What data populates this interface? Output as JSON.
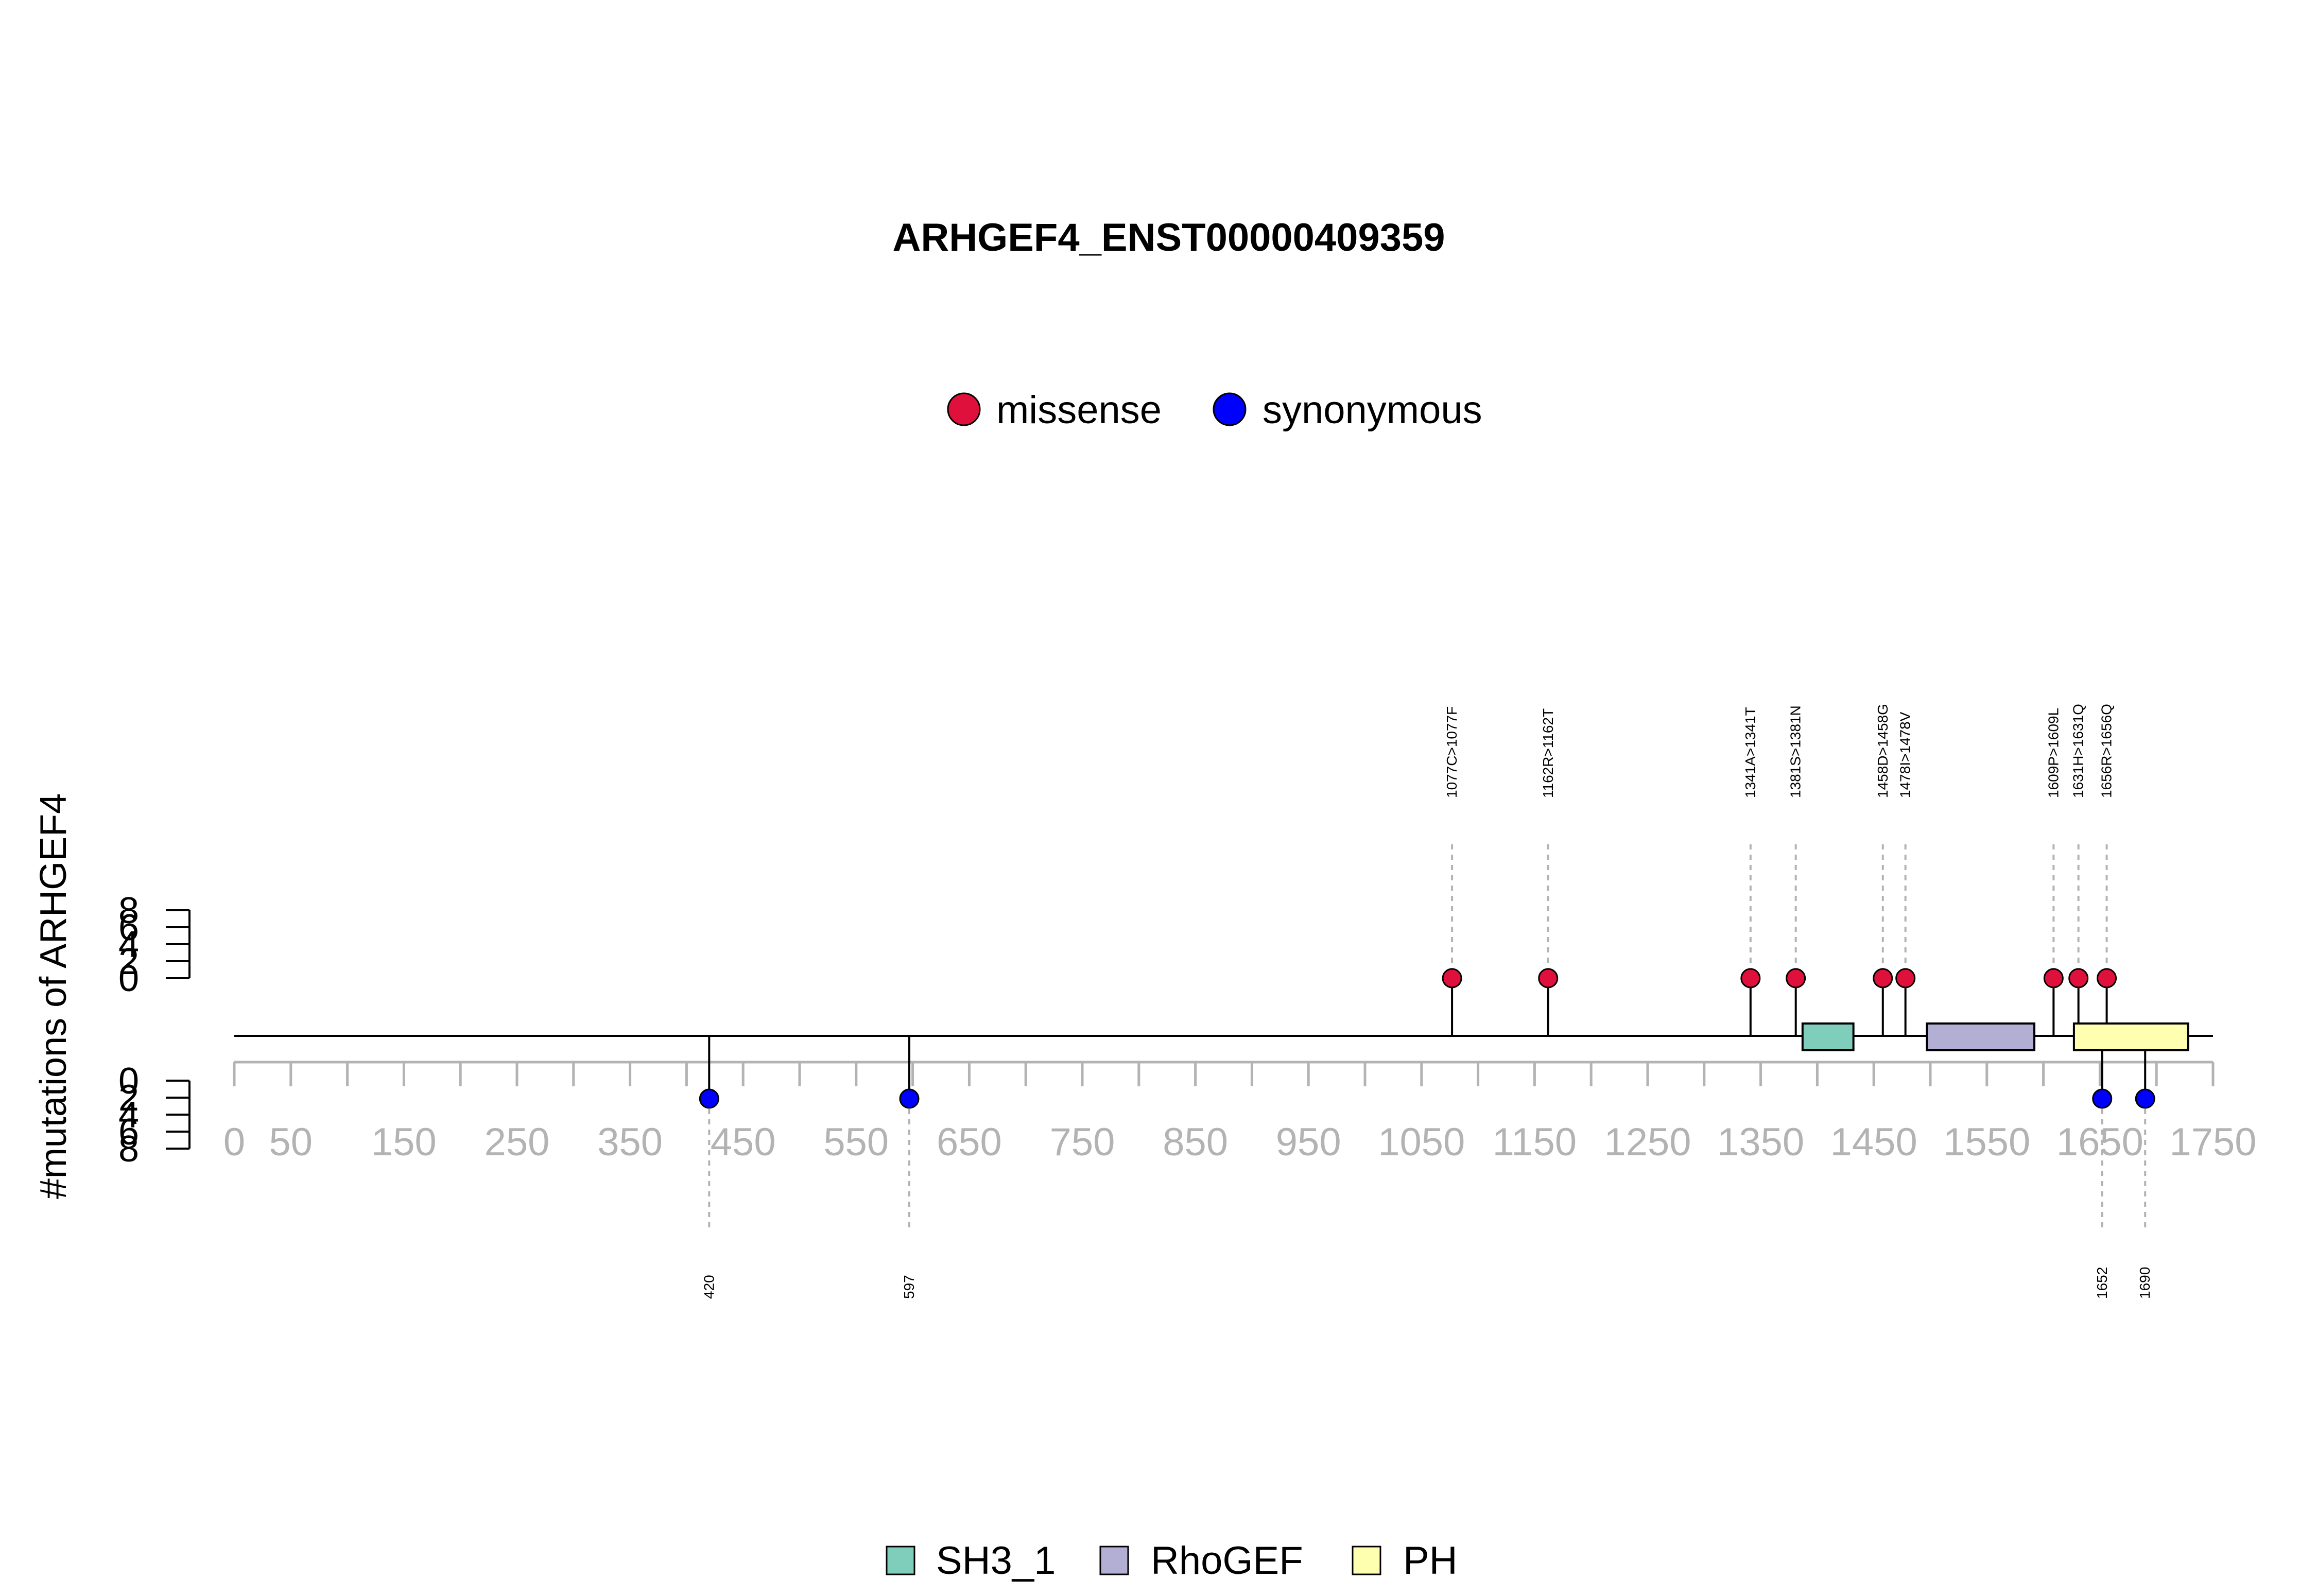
{
  "chart_data": {
    "type": "lollipop",
    "title": "ARHGEF4_ENST00000409359",
    "ylabel": "#mutations of ARHGEF4",
    "xlim": [
      0,
      1750
    ],
    "x_ticks": [
      0,
      50,
      100,
      150,
      200,
      250,
      300,
      350,
      400,
      450,
      500,
      550,
      600,
      650,
      700,
      750,
      800,
      850,
      900,
      950,
      1000,
      1050,
      1100,
      1150,
      1200,
      1250,
      1300,
      1350,
      1400,
      1450,
      1500,
      1550,
      1600,
      1650,
      1700,
      1750
    ],
    "x_tick_labels": [
      "0",
      "50",
      "150",
      "250",
      "350",
      "450",
      "550",
      "650",
      "750",
      "850",
      "950",
      "1050",
      "1150",
      "1250",
      "1350",
      "1450",
      "1550",
      "1650",
      "1750"
    ],
    "y_ticks": [
      "0",
      "2",
      "4",
      "6",
      "8"
    ],
    "ylim": [
      0,
      8
    ],
    "mutation_legend": [
      {
        "name": "missense",
        "color": "#E0103C"
      },
      {
        "name": "synonymous",
        "color": "#0000FF"
      }
    ],
    "domain_legend": [
      {
        "name": "SH3_1",
        "color": "#7FCDBB"
      },
      {
        "name": "RhoGEF",
        "color": "#B3AED4"
      },
      {
        "name": "PH",
        "color": "#FFFFB0"
      }
    ],
    "domains": [
      {
        "name": "SH3_1",
        "start": 1387,
        "end": 1432
      },
      {
        "name": "RhoGEF",
        "start": 1497,
        "end": 1592
      },
      {
        "name": "PH",
        "start": 1627,
        "end": 1728
      }
    ],
    "missense": [
      {
        "pos": 1077,
        "count": 1,
        "label": "1077C>1077F"
      },
      {
        "pos": 1162,
        "count": 1,
        "label": "1162R>1162T"
      },
      {
        "pos": 1341,
        "count": 1,
        "label": "1341A>1341T"
      },
      {
        "pos": 1381,
        "count": 1,
        "label": "1381S>1381N"
      },
      {
        "pos": 1458,
        "count": 1,
        "label": "1458D>1458G"
      },
      {
        "pos": 1478,
        "count": 1,
        "label": "1478I>1478V"
      },
      {
        "pos": 1609,
        "count": 1,
        "label": "1609P>1609L"
      },
      {
        "pos": 1631,
        "count": 1,
        "label": "1631H>1631Q"
      },
      {
        "pos": 1656,
        "count": 1,
        "label": "1656R>1656Q"
      }
    ],
    "synonymous": [
      {
        "pos": 420,
        "count": 1,
        "label": "420"
      },
      {
        "pos": 597,
        "count": 1,
        "label": "597"
      },
      {
        "pos": 1652,
        "count": 1,
        "label": "1652"
      },
      {
        "pos": 1690,
        "count": 1,
        "label": "1690"
      }
    ]
  }
}
